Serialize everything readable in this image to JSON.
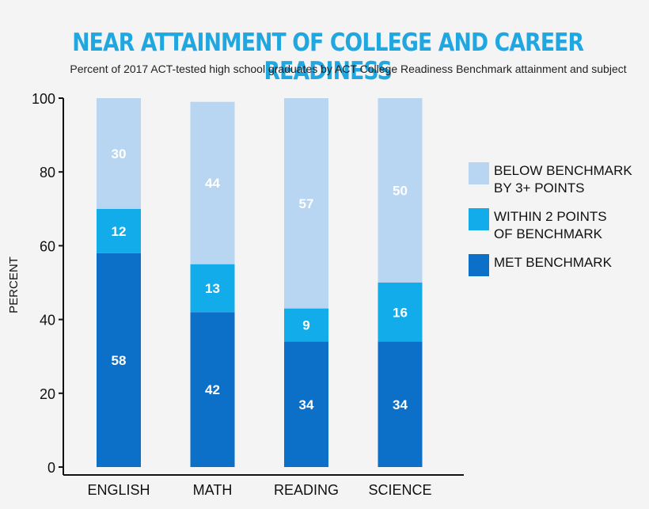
{
  "chart_data": {
    "type": "bar",
    "stacked": true,
    "title": "NEAR ATTAINMENT OF COLLEGE AND CAREER READINESS",
    "subtitle": "Percent of 2017 ACT-tested high school graduates by ACT College Readiness Benchmark attainment and subject",
    "ylabel": "PERCENT",
    "xlabel": "",
    "ylim": [
      0,
      100
    ],
    "yticks": [
      0,
      20,
      40,
      60,
      80,
      100
    ],
    "categories": [
      "ENGLISH",
      "MATH",
      "READING",
      "SCIENCE"
    ],
    "series": [
      {
        "name": "MET BENCHMARK",
        "color": "#0c70c9",
        "values": [
          58,
          42,
          34,
          34
        ]
      },
      {
        "name": "WITHIN 2 POINTS\nOF BENCHMARK",
        "color": "#12acea",
        "values": [
          12,
          13,
          9,
          16
        ]
      },
      {
        "name": "BELOW BENCHMARK\nBY 3+ POINTS",
        "color": "#b8d6f1",
        "values": [
          30,
          44,
          57,
          50
        ]
      }
    ],
    "legend_position": "right",
    "grid": false
  }
}
